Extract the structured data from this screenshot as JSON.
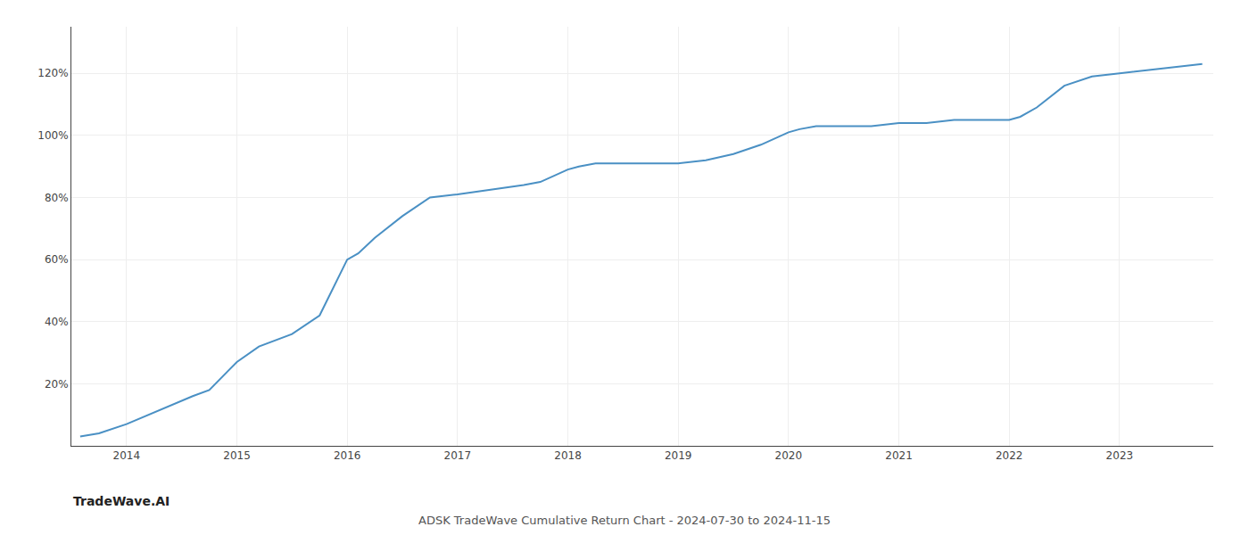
{
  "chart_data": {
    "type": "line",
    "title": "ADSK TradeWave Cumulative Return Chart - 2024-07-30 to 2024-11-15",
    "annotations": [
      {
        "text": "TradeWave.AI"
      }
    ],
    "x": [
      2013.58,
      2013.75,
      2014.0,
      2014.2,
      2014.4,
      2014.6,
      2014.75,
      2015.0,
      2015.2,
      2015.5,
      2015.75,
      2016.0,
      2016.1,
      2016.25,
      2016.5,
      2016.75,
      2017.0,
      2017.2,
      2017.4,
      2017.6,
      2017.75,
      2018.0,
      2018.1,
      2018.25,
      2018.5,
      2018.75,
      2019.0,
      2019.25,
      2019.5,
      2019.75,
      2020.0,
      2020.1,
      2020.25,
      2020.5,
      2020.75,
      2021.0,
      2021.25,
      2021.5,
      2021.75,
      2022.0,
      2022.1,
      2022.25,
      2022.5,
      2022.75,
      2023.0,
      2023.25,
      2023.5,
      2023.75
    ],
    "values": [
      3,
      4,
      7,
      10,
      13,
      16,
      18,
      27,
      32,
      36,
      42,
      60,
      62,
      67,
      74,
      80,
      81,
      82,
      83,
      84,
      85,
      89,
      90,
      91,
      91,
      91,
      91,
      92,
      94,
      97,
      101,
      102,
      103,
      103,
      103,
      104,
      104,
      105,
      105,
      105,
      106,
      109,
      116,
      119,
      120,
      121,
      122,
      123
    ],
    "color": "#4a90c4",
    "xlim": [
      2013.5,
      2023.85
    ],
    "xticks": [
      2014,
      2015,
      2016,
      2017,
      2018,
      2019,
      2020,
      2021,
      2022,
      2023
    ],
    "ylim": [
      0,
      135
    ],
    "yticks": [
      {
        "value": 20,
        "label": "20%"
      },
      {
        "value": 40,
        "label": "40%"
      },
      {
        "value": 60,
        "label": "60%"
      },
      {
        "value": 80,
        "label": "80%"
      },
      {
        "value": 100,
        "label": "100%"
      },
      {
        "value": 120,
        "label": "120%"
      }
    ],
    "grid": true
  }
}
